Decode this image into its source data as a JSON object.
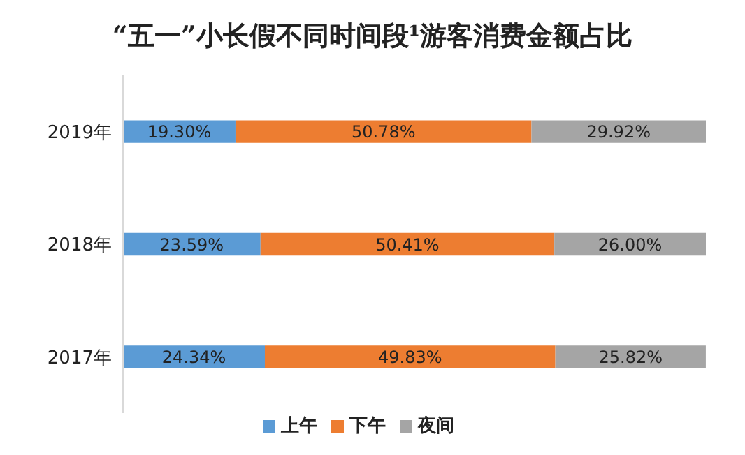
{
  "chart_data": {
    "type": "bar",
    "orientation": "horizontal",
    "stacked": true,
    "title": "“五一”小长假不同时间段¹游客消费金额占比",
    "categories": [
      "2019年",
      "2018年",
      "2017年"
    ],
    "series": [
      {
        "name": "上午",
        "color": "#5b9bd5",
        "values": [
          19.3,
          23.59,
          24.34
        ],
        "value_labels": [
          "19.30%",
          "23.59%",
          "24.34%"
        ]
      },
      {
        "name": "下午",
        "color": "#ed7d31",
        "values": [
          50.78,
          50.41,
          49.83
        ],
        "value_labels": [
          "50.78%",
          "50.41%",
          "49.83%"
        ]
      },
      {
        "name": "夜间",
        "color": "#a5a5a5",
        "values": [
          29.92,
          26.0,
          25.82
        ],
        "value_labels": [
          "29.92%",
          "26.00%",
          "25.82%"
        ]
      }
    ],
    "xlim": [
      0,
      100
    ],
    "tick_labels": "y",
    "grid": false,
    "legend": "bottom"
  }
}
